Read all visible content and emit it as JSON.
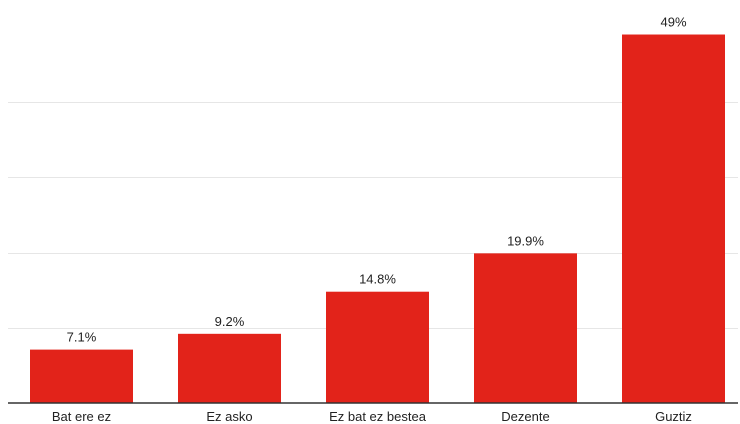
{
  "chart_data": {
    "type": "bar",
    "categories": [
      "Bat ere ez",
      "Ez asko",
      "Ez bat ez bestea",
      "Dezente",
      "Guztiz"
    ],
    "values": [
      7.1,
      9.2,
      14.8,
      19.9,
      49
    ],
    "data_labels": [
      "7.1%",
      "9.2%",
      "14.8%",
      "19.9%",
      "49%"
    ],
    "title": "",
    "xlabel": "",
    "ylabel": "",
    "ylim": [
      0,
      50
    ],
    "grid": true,
    "legend": "none",
    "bar_color": "#e2231a"
  }
}
